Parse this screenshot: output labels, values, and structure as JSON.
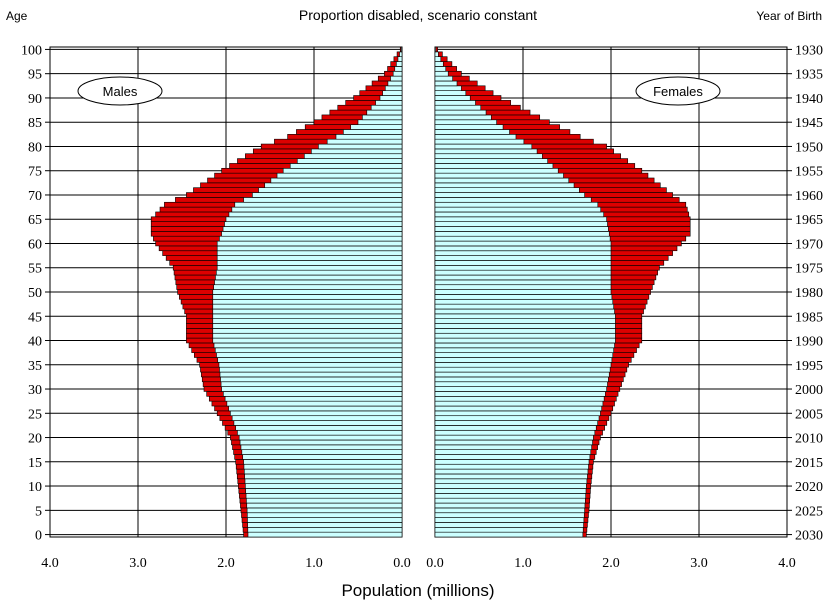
{
  "chart_data": {
    "type": "bar",
    "title": "Proportion disabled, scenario constant",
    "left_axis_label": "Age",
    "right_axis_label": "Year of Birth",
    "xlabel": "Population  (millions)",
    "xlim": [
      0,
      4
    ],
    "xticks_males": [
      "4.0",
      "3.0",
      "2.0",
      "1.0",
      "0.0"
    ],
    "xticks_females": [
      "0.0",
      "1.0",
      "2.0",
      "3.0",
      "4.0"
    ],
    "age_ticks": [
      100,
      95,
      90,
      85,
      80,
      75,
      70,
      65,
      60,
      55,
      50,
      45,
      40,
      35,
      30,
      25,
      20,
      15,
      10,
      5,
      0
    ],
    "birth_year_ticks": [
      1930,
      1935,
      1940,
      1945,
      1950,
      1955,
      1960,
      1965,
      1970,
      1975,
      1980,
      1985,
      1990,
      1995,
      2000,
      2005,
      2010,
      2015,
      2020,
      2025,
      2030
    ],
    "legend_males": "Males",
    "legend_females": "Females",
    "colors": {
      "not_disabled": "#ccffff",
      "disabled": "#dd0000",
      "outline": "#000000"
    },
    "age_keypoints": [
      0,
      5,
      10,
      15,
      20,
      25,
      30,
      35,
      40,
      45,
      50,
      55,
      60,
      62,
      65,
      68,
      70,
      75,
      80,
      82,
      85,
      90,
      95,
      100
    ],
    "series": [
      {
        "name": "Males",
        "total": [
          1.8,
          1.83,
          1.86,
          1.89,
          1.95,
          2.1,
          2.25,
          2.3,
          2.45,
          2.45,
          2.55,
          2.6,
          2.8,
          2.85,
          2.85,
          2.7,
          2.45,
          2.05,
          1.6,
          1.3,
          1.0,
          0.55,
          0.2,
          0.02
        ],
        "not_disabled": [
          1.75,
          1.76,
          1.78,
          1.8,
          1.85,
          1.95,
          2.05,
          2.08,
          2.15,
          2.15,
          2.15,
          2.1,
          2.1,
          2.05,
          2.0,
          1.9,
          1.7,
          1.35,
          0.95,
          0.75,
          0.5,
          0.25,
          0.1,
          0.01
        ]
      },
      {
        "name": "Females",
        "total": [
          1.72,
          1.75,
          1.77,
          1.8,
          1.88,
          2.0,
          2.1,
          2.2,
          2.35,
          2.35,
          2.45,
          2.55,
          2.8,
          2.9,
          2.9,
          2.85,
          2.7,
          2.35,
          1.95,
          1.65,
          1.3,
          0.75,
          0.3,
          0.03
        ],
        "not_disabled": [
          1.68,
          1.7,
          1.72,
          1.75,
          1.8,
          1.88,
          1.95,
          2.0,
          2.05,
          2.05,
          2.0,
          2.0,
          2.0,
          1.98,
          1.95,
          1.85,
          1.7,
          1.4,
          1.1,
          0.92,
          0.7,
          0.4,
          0.15,
          0.01
        ]
      }
    ]
  }
}
